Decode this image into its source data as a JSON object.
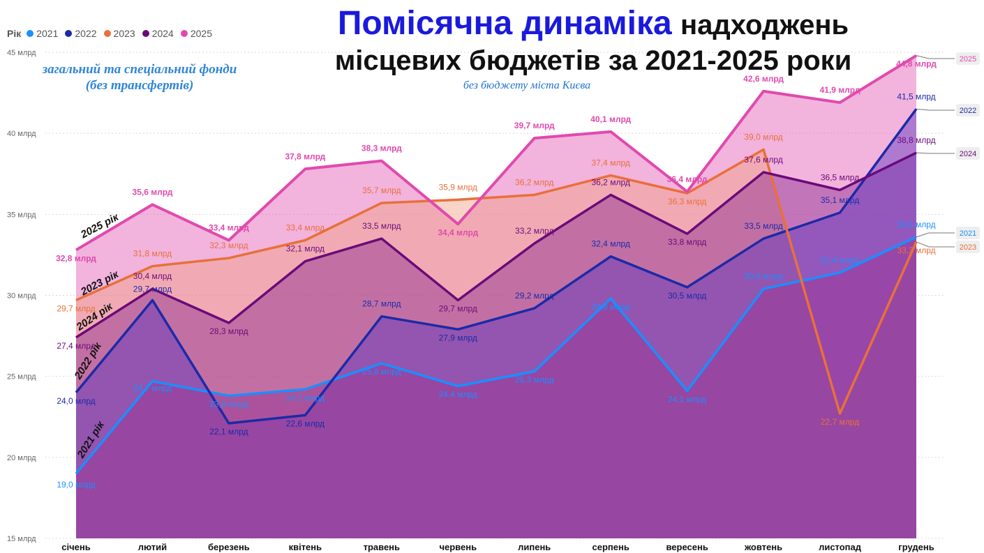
{
  "title": {
    "highlight": "Помісячна динаміка",
    "rest1": "надходжень",
    "line2": "місцевих бюджетів за 2021-2025 роки"
  },
  "subtitle": "без бюджету міста Києва",
  "funds_note": {
    "line1": "загальний та спеціальний фонди",
    "line2": "(без трансфертів)"
  },
  "legend": {
    "title": "Рік",
    "items": [
      {
        "label": "2021",
        "color": "#1a8fff"
      },
      {
        "label": "2022",
        "color": "#1c2aa8"
      },
      {
        "label": "2023",
        "color": "#e8703a"
      },
      {
        "label": "2024",
        "color": "#6b0a7a"
      },
      {
        "label": "2025",
        "color": "#e04aae"
      }
    ]
  },
  "chart_data": {
    "type": "area",
    "categories": [
      "січень",
      "лютий",
      "березень",
      "квітень",
      "травень",
      "червень",
      "липень",
      "серпень",
      "вересень",
      "жовтень",
      "листопад",
      "грудень"
    ],
    "y_ticks": [
      "15 млрд",
      "20 млрд",
      "25 млрд",
      "30 млрд",
      "35 млрд",
      "40 млрд",
      "45 млрд"
    ],
    "ylim": [
      15,
      45
    ],
    "grid": true,
    "legend_position": "top-left",
    "series": [
      {
        "name": "2021",
        "color": "#1a8fff",
        "values": [
          19.0,
          24.7,
          23.8,
          24.2,
          25.8,
          24.4,
          25.3,
          29.8,
          24.1,
          30.4,
          31.4,
          33.6
        ],
        "labels": [
          "19,0 млрд",
          "24,7 млрд",
          "23,8 млрд",
          "24,2 млрд",
          "25,8 млрд",
          "24,4 млрд",
          "25,3 млрд",
          "29,8 млрд",
          "24,1 млрд",
          "30,4 млрд",
          "31,4 млрд",
          "33,6 млрд"
        ]
      },
      {
        "name": "2022",
        "color": "#1c2aa8",
        "values": [
          24.0,
          29.7,
          22.1,
          22.6,
          28.7,
          27.9,
          29.2,
          32.4,
          30.5,
          33.5,
          35.1,
          41.5
        ],
        "labels": [
          "24,0 млрд",
          "29,7 млрд",
          "22,1 млрд",
          "22,6 млрд",
          "28,7 млрд",
          "27,9 млрд",
          "29,2 млрд",
          "32,4 млрд",
          "30,5 млрд",
          "33,5 млрд",
          "35,1 млрд",
          "41,5 млрд"
        ]
      },
      {
        "name": "2023",
        "color": "#e8703a",
        "values": [
          29.7,
          31.8,
          32.3,
          33.4,
          35.7,
          35.9,
          36.2,
          37.4,
          36.3,
          39.0,
          22.7,
          33.3
        ],
        "labels": [
          "29,7 млрд",
          "31,8 млрд",
          "32,3 млрд",
          "33,4 млрд",
          "35,7 млрд",
          "35,9 млрд",
          "36,2 млрд",
          "37,4 млрд",
          "36,3 млрд",
          "39,0 млрд",
          "22,7 млрд",
          "33,3 млрд"
        ]
      },
      {
        "name": "2024",
        "color": "#6b0a7a",
        "values": [
          27.4,
          30.4,
          28.3,
          32.1,
          33.5,
          29.7,
          33.2,
          36.2,
          33.8,
          37.6,
          36.5,
          38.8
        ],
        "labels": [
          "27,4 млрд",
          "30,4 млрд",
          "28,3 млрд",
          "32,1 млрд",
          "33,5 млрд",
          "29,7 млрд",
          "33,2 млрд",
          "36,2 млрд",
          "33,8 млрд",
          "37,6 млрд",
          "36,5 млрд",
          "38,8 млрд"
        ]
      },
      {
        "name": "2025",
        "color": "#e04aae",
        "values": [
          32.8,
          35.6,
          33.4,
          37.8,
          38.3,
          34.4,
          39.7,
          40.1,
          36.4,
          42.6,
          41.9,
          44.8
        ],
        "labels": [
          "32,8 млрд",
          "35,6 млрд",
          "33,4 млрд",
          "37,8 млрд",
          "38,3 млрд",
          "34,4 млрд",
          "39,7 млрд",
          "40,1 млрд",
          "36,4 млрд",
          "42,6 млрд",
          "41,9 млрд",
          "44,8 млрд"
        ]
      }
    ],
    "year_annotations": [
      "2025 рік",
      "2023 рік",
      "2024 рік",
      "2022 рік",
      "2021 рік"
    ]
  }
}
